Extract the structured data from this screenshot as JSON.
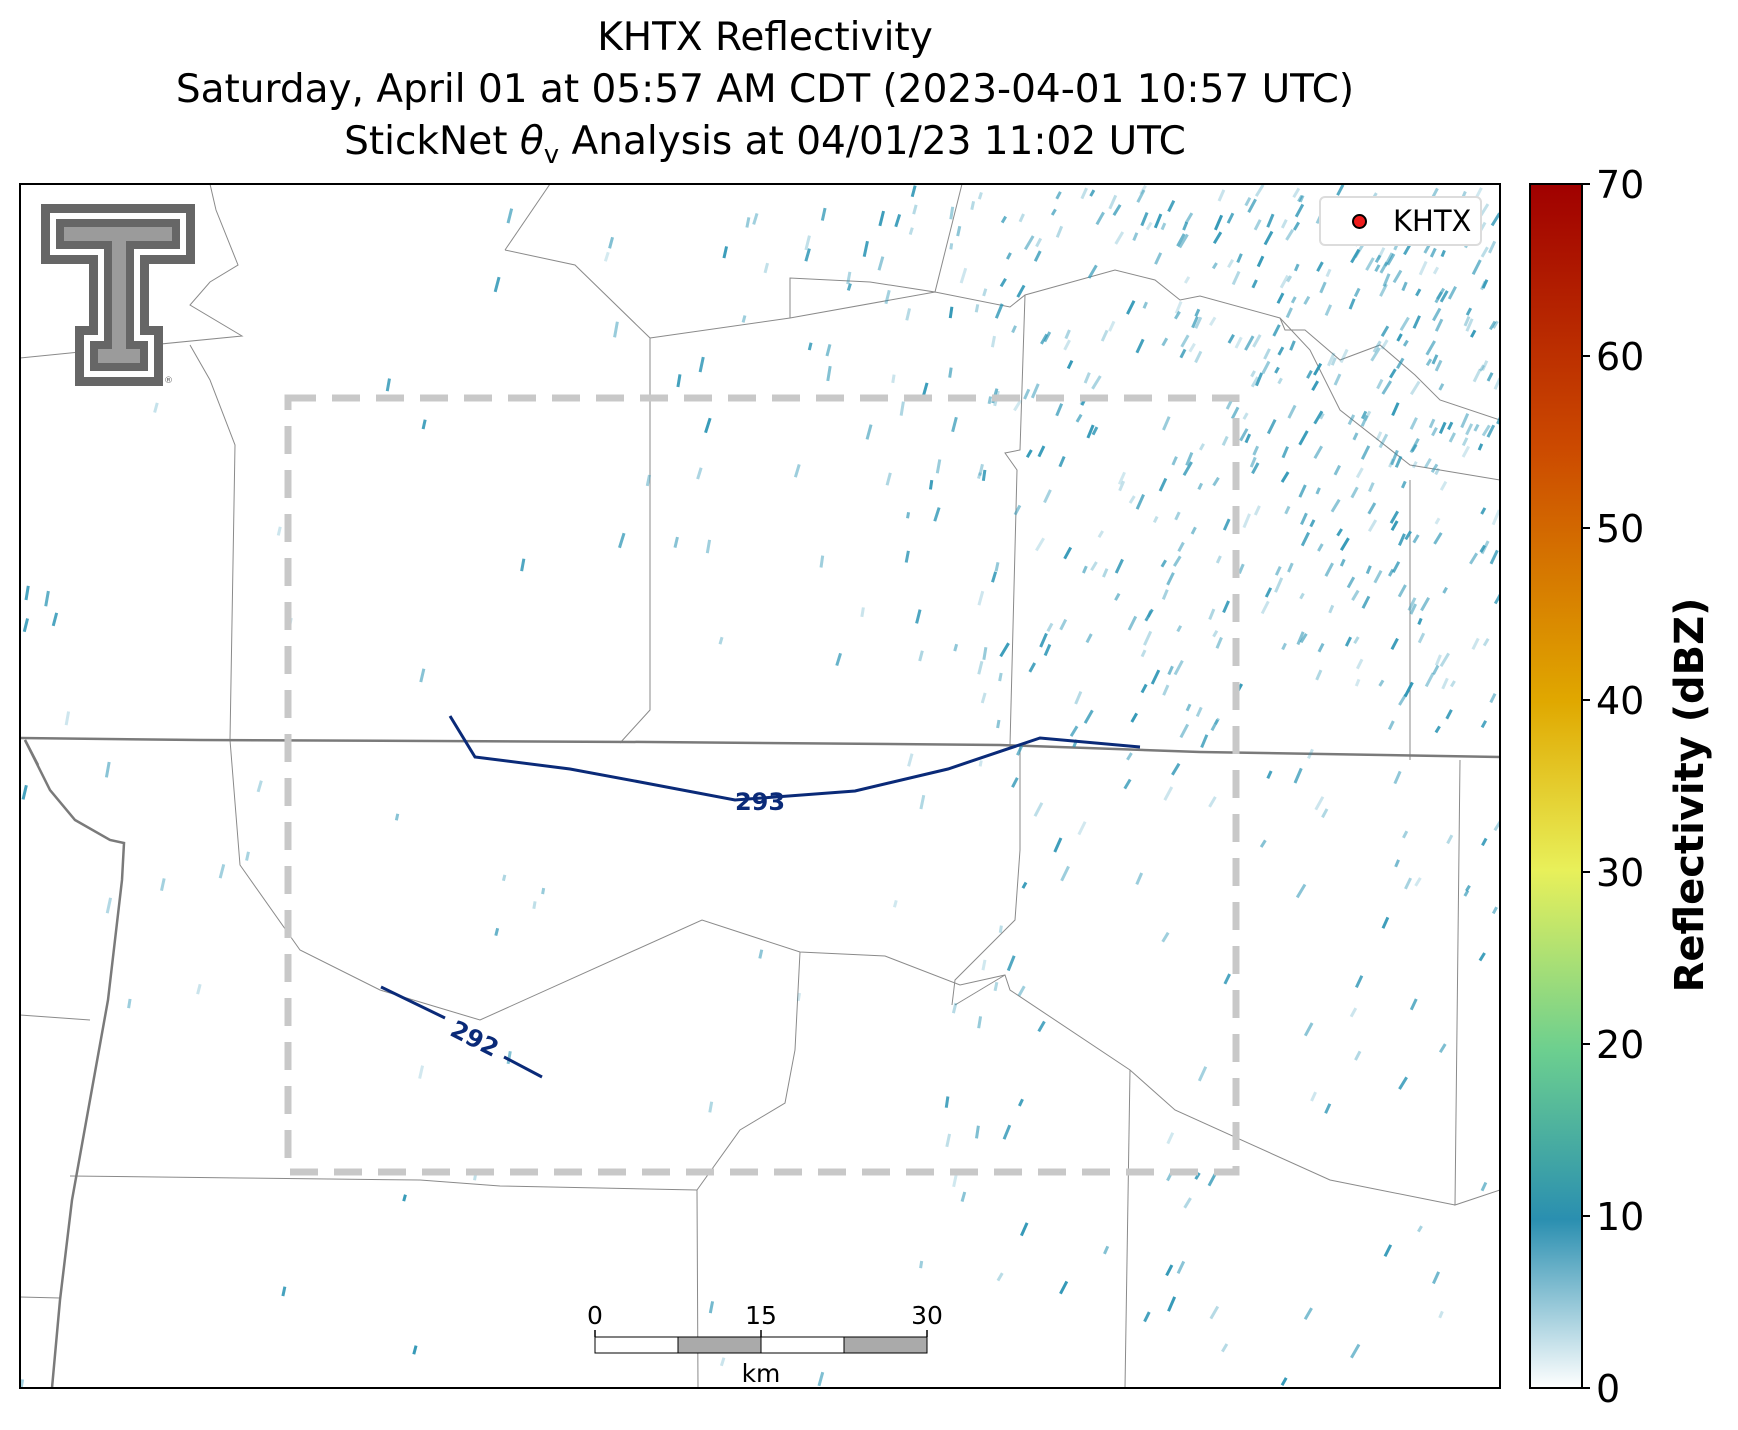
{
  "title": {
    "line1": "KHTX Reflectivity",
    "line2": "Saturday, April 01 at 05:57 AM CDT (2023-04-01 10:57 UTC)",
    "line3_prefix": "StickNet ",
    "line3_theta": "θ",
    "line3_sub": "v",
    "line3_suffix": " Analysis at 04/01/23 11:02 UTC"
  },
  "legend": {
    "label": "KHTX",
    "marker_color": "#ee1c1c"
  },
  "colorbar": {
    "label": "Reflectivity (dBZ)",
    "min": 0,
    "max": 70,
    "ticks": [
      "0",
      "10",
      "20",
      "30",
      "40",
      "50",
      "60",
      "70"
    ],
    "colors": [
      "#ffffff",
      "#2a8fb0",
      "#6ccf8f",
      "#e8f05a",
      "#e0a800",
      "#cc4a00",
      "#a00000"
    ]
  },
  "contours": [
    {
      "label": "293",
      "value": 293,
      "color": "#0a2a78"
    },
    {
      "label": "292",
      "value": 292,
      "color": "#0a2a78"
    }
  ],
  "scalebar": {
    "ticks": [
      "0",
      "15",
      "30"
    ],
    "unit": "km"
  },
  "echo_color": "#2a94b4",
  "logo": {
    "name": "texas-tech-double-t",
    "color": "#666666"
  }
}
